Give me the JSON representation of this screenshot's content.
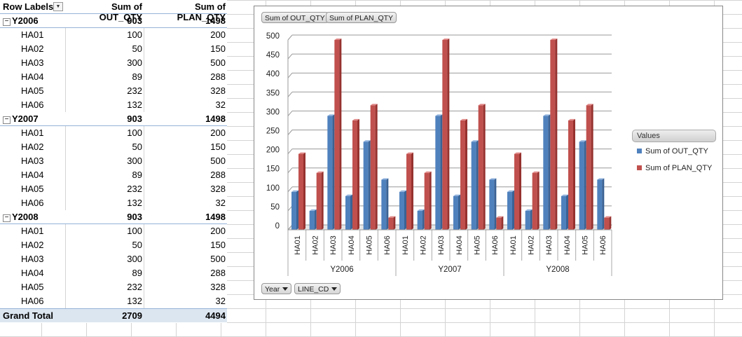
{
  "pivot": {
    "header": {
      "row_labels": "Row Labels",
      "col1": "Sum of OUT_QTY",
      "col2": "Sum of PLAN_QTY"
    },
    "groups": [
      {
        "label": "Y2006",
        "out": "903",
        "plan": "1498",
        "items": [
          {
            "label": "HA01",
            "out": "100",
            "plan": "200"
          },
          {
            "label": "HA02",
            "out": "50",
            "plan": "150"
          },
          {
            "label": "HA03",
            "out": "300",
            "plan": "500"
          },
          {
            "label": "HA04",
            "out": "89",
            "plan": "288"
          },
          {
            "label": "HA05",
            "out": "232",
            "plan": "328"
          },
          {
            "label": "HA06",
            "out": "132",
            "plan": "32"
          }
        ]
      },
      {
        "label": "Y2007",
        "out": "903",
        "plan": "1498",
        "items": [
          {
            "label": "HA01",
            "out": "100",
            "plan": "200"
          },
          {
            "label": "HA02",
            "out": "50",
            "plan": "150"
          },
          {
            "label": "HA03",
            "out": "300",
            "plan": "500"
          },
          {
            "label": "HA04",
            "out": "89",
            "plan": "288"
          },
          {
            "label": "HA05",
            "out": "232",
            "plan": "328"
          },
          {
            "label": "HA06",
            "out": "132",
            "plan": "32"
          }
        ]
      },
      {
        "label": "Y2008",
        "out": "903",
        "plan": "1498",
        "items": [
          {
            "label": "HA01",
            "out": "100",
            "plan": "200"
          },
          {
            "label": "HA02",
            "out": "50",
            "plan": "150"
          },
          {
            "label": "HA03",
            "out": "300",
            "plan": "500"
          },
          {
            "label": "HA04",
            "out": "89",
            "plan": "288"
          },
          {
            "label": "HA05",
            "out": "232",
            "plan": "328"
          },
          {
            "label": "HA06",
            "out": "132",
            "plan": "32"
          }
        ]
      }
    ],
    "grand_total": {
      "label": "Grand Total",
      "out": "2709",
      "plan": "4494"
    }
  },
  "chart_buttons": {
    "values_field_1": "Sum of OUT_QTY",
    "values_field_2": "Sum of PLAN_QTY",
    "axis_field_1": "Year",
    "axis_field_2": "LINE_CD"
  },
  "legend": {
    "title": "Values"
  },
  "colors": {
    "out": "#4f81bd",
    "plan": "#c0504d"
  },
  "chart_data": {
    "type": "bar",
    "groups": [
      "Y2006",
      "Y2007",
      "Y2008"
    ],
    "categories": [
      "HA01",
      "HA02",
      "HA03",
      "HA04",
      "HA05",
      "HA06"
    ],
    "series": [
      {
        "name": "Sum of OUT_QTY",
        "values": [
          [
            100,
            50,
            300,
            89,
            232,
            132
          ],
          [
            100,
            50,
            300,
            89,
            232,
            132
          ],
          [
            100,
            50,
            300,
            89,
            232,
            132
          ]
        ]
      },
      {
        "name": "Sum of PLAN_QTY",
        "values": [
          [
            200,
            150,
            500,
            288,
            328,
            32
          ],
          [
            200,
            150,
            500,
            288,
            328,
            32
          ],
          [
            200,
            150,
            500,
            288,
            328,
            32
          ]
        ]
      }
    ],
    "yticks": [
      "0",
      "50",
      "100",
      "150",
      "200",
      "250",
      "300",
      "350",
      "400",
      "450",
      "500"
    ],
    "ylim": [
      0,
      500
    ],
    "grid": true,
    "legend_position": "right"
  }
}
